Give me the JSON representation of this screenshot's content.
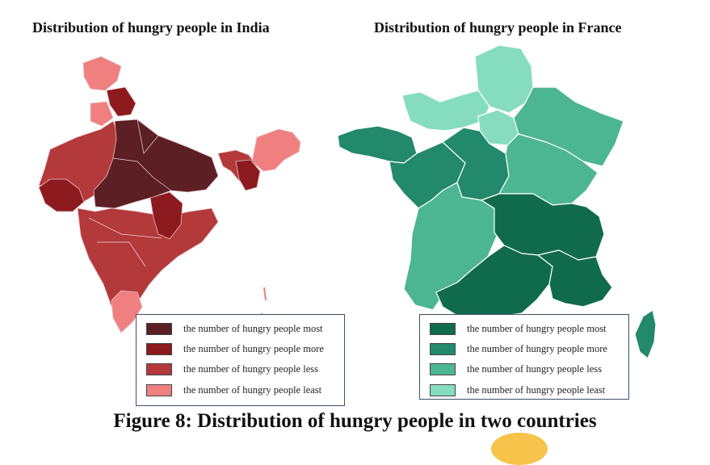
{
  "india": {
    "title": "Distribution of hungry people in India",
    "legend": [
      {
        "label": "the number of hungry people most",
        "color": "#5b1f24"
      },
      {
        "label": "the number of hungry people more",
        "color": "#8c1a1e"
      },
      {
        "label": "the number of hungry people less",
        "color": "#b3393b"
      },
      {
        "label": "the number of hungry people least",
        "color": "#f08080"
      }
    ]
  },
  "france": {
    "title": "Distribution of hungry people in France",
    "legend": [
      {
        "label": "the number of hungry people most",
        "color": "#0f6b4b"
      },
      {
        "label": "the number of hungry people more",
        "color": "#22896a"
      },
      {
        "label": "the number of hungry people less",
        "color": "#4cb692"
      },
      {
        "label": "the number of hungry people least",
        "color": "#86dcbf"
      }
    ]
  },
  "caption": "Figure 8: Distribution of hungry people in two countries"
}
